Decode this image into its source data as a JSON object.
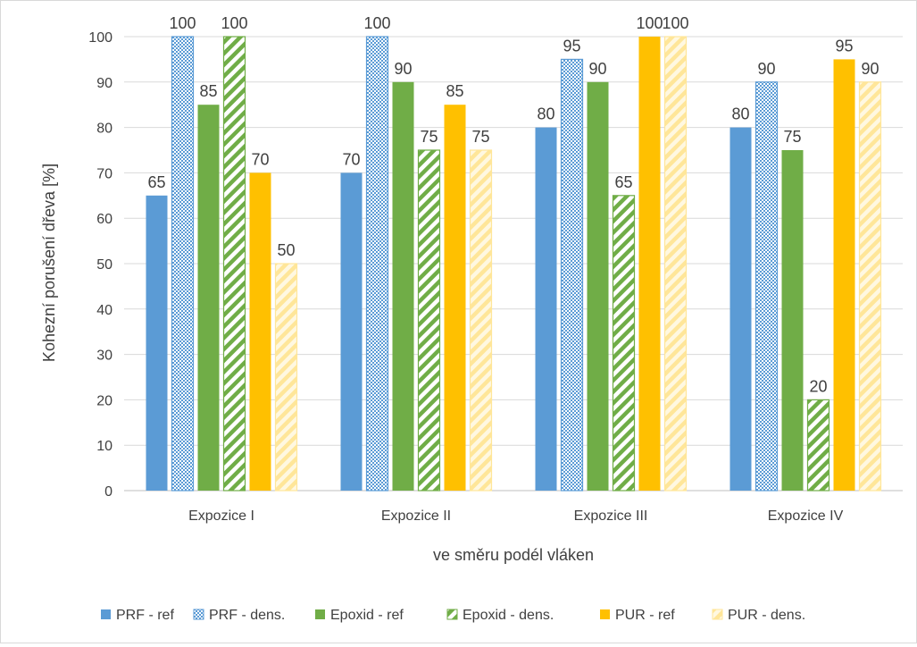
{
  "chart_data": {
    "type": "bar",
    "title": "",
    "xlabel": "ve směru podél vláken",
    "ylabel": "Kohezní porušení dřeva [%]",
    "ylim": [
      0,
      100
    ],
    "yticks": [
      "0",
      "10",
      "20",
      "30",
      "40",
      "50",
      "60",
      "70",
      "80",
      "90",
      "100"
    ],
    "grid": true,
    "legend_position": "bottom",
    "categories": [
      "Expozice I",
      "Expozice II",
      "Expozice III",
      "Expozice IV"
    ],
    "series": [
      {
        "name": "PRF - ref",
        "values": [
          65,
          70,
          80,
          80
        ],
        "color": "#5b9bd5",
        "pattern": "solid"
      },
      {
        "name": "PRF - dens.",
        "values": [
          100,
          100,
          95,
          90
        ],
        "color": "#5b9bd5",
        "pattern": "crosshatch"
      },
      {
        "name": "Epoxid - ref",
        "values": [
          85,
          90,
          90,
          75
        ],
        "color": "#70ad47",
        "pattern": "solid"
      },
      {
        "name": "Epoxid - dens.",
        "values": [
          100,
          75,
          65,
          20
        ],
        "color": "#70ad47",
        "pattern": "diagonal-stripes"
      },
      {
        "name": "PUR - ref",
        "values": [
          70,
          85,
          100,
          95
        ],
        "color": "#ffc000",
        "pattern": "solid"
      },
      {
        "name": "PUR - dens.",
        "values": [
          50,
          75,
          100,
          90
        ],
        "color": "#ffe699",
        "pattern": "light-diagonal-stripes"
      }
    ]
  }
}
